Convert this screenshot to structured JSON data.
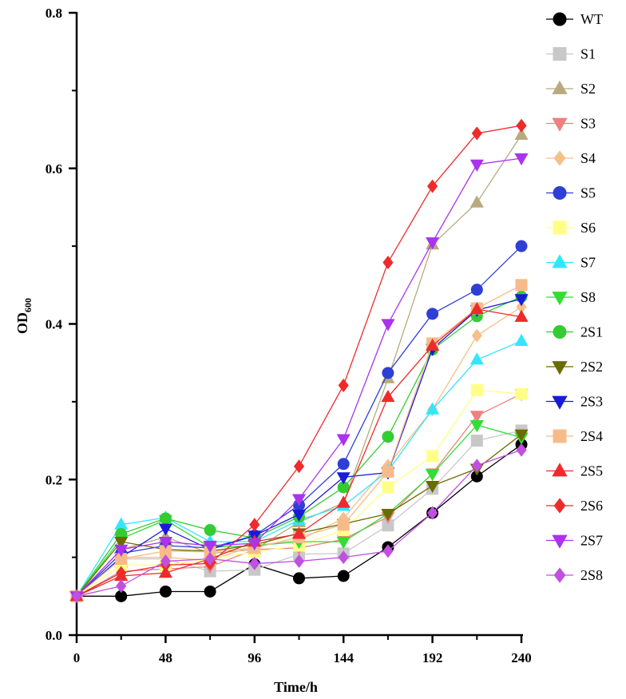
{
  "chart_data": {
    "type": "line",
    "xlabel": "Time/h",
    "ylabel": "OD",
    "ylabel_subscript": "600",
    "xlim": [
      0,
      240
    ],
    "ylim": [
      0.0,
      0.8
    ],
    "x_ticks": [
      0,
      48,
      96,
      144,
      192,
      240
    ],
    "x_tick_labels": [
      "0",
      "48",
      "96",
      "144",
      "192",
      "240"
    ],
    "y_ticks": [
      0.0,
      0.2,
      0.4,
      0.6,
      0.8
    ],
    "y_tick_labels": [
      "0.0",
      "0.2",
      "0.4",
      "0.6",
      "0.8"
    ],
    "grid": false,
    "legend_position": "right",
    "x": [
      0,
      24,
      48,
      72,
      96,
      120,
      144,
      168,
      192,
      216,
      240
    ],
    "series": [
      {
        "name": "WT",
        "marker": "circle",
        "color": "#000000",
        "values": [
          0.05,
          0.05,
          0.056,
          0.056,
          0.091,
          0.073,
          0.076,
          0.113,
          0.157,
          0.204,
          0.245
        ]
      },
      {
        "name": "S1",
        "marker": "square",
        "color": "#c8c8c8",
        "values": [
          0.05,
          0.098,
          0.098,
          0.082,
          0.084,
          0.104,
          0.105,
          0.141,
          0.188,
          0.25,
          0.263
        ]
      },
      {
        "name": "S2",
        "marker": "triangle-up",
        "color": "#b8aa7e",
        "values": [
          0.05,
          0.11,
          0.126,
          0.105,
          0.11,
          0.145,
          0.17,
          0.33,
          0.502,
          0.556,
          0.643
        ]
      },
      {
        "name": "S3",
        "marker": "triangle-down",
        "color": "#f08080",
        "values": [
          0.05,
          0.082,
          0.085,
          0.088,
          0.11,
          0.112,
          0.123,
          0.152,
          0.208,
          0.282,
          0.31
        ]
      },
      {
        "name": "S4",
        "marker": "diamond",
        "color": "#f5c08a",
        "values": [
          0.05,
          0.1,
          0.1,
          0.096,
          0.115,
          0.122,
          0.15,
          0.218,
          0.29,
          0.385,
          0.422
        ]
      },
      {
        "name": "S5",
        "marker": "circle",
        "color": "#2e3fd6",
        "values": [
          0.05,
          0.105,
          0.115,
          0.112,
          0.128,
          0.167,
          0.22,
          0.337,
          0.413,
          0.444,
          0.5
        ]
      },
      {
        "name": "S6",
        "marker": "square",
        "color": "#ffff88",
        "values": [
          0.05,
          0.09,
          0.09,
          0.098,
          0.107,
          0.115,
          0.135,
          0.19,
          0.23,
          0.315,
          0.31
        ]
      },
      {
        "name": "S7",
        "marker": "triangle-up",
        "color": "#33e6ff",
        "values": [
          0.05,
          0.142,
          0.151,
          0.12,
          0.12,
          0.148,
          0.166,
          0.211,
          0.29,
          0.354,
          0.378
        ]
      },
      {
        "name": "S8",
        "marker": "triangle-down",
        "color": "#33dd33",
        "values": [
          0.05,
          0.124,
          0.148,
          0.113,
          0.115,
          0.12,
          0.12,
          0.156,
          0.207,
          0.27,
          0.254
        ]
      },
      {
        "name": "2S1",
        "marker": "circle",
        "color": "#33cc33",
        "values": [
          0.05,
          0.13,
          0.15,
          0.135,
          0.125,
          0.152,
          0.19,
          0.255,
          0.367,
          0.41,
          0.435
        ]
      },
      {
        "name": "2S2",
        "marker": "triangle-down",
        "color": "#6b6b00",
        "values": [
          0.05,
          0.12,
          0.11,
          0.108,
          0.116,
          0.131,
          0.143,
          0.156,
          0.192,
          0.214,
          0.258
        ]
      },
      {
        "name": "2S3",
        "marker": "triangle-down",
        "color": "#1a1adc",
        "values": [
          0.05,
          0.1,
          0.137,
          0.11,
          0.128,
          0.155,
          0.203,
          0.209,
          0.368,
          0.418,
          0.432
        ]
      },
      {
        "name": "2S4",
        "marker": "square",
        "color": "#f7bb8a",
        "values": [
          0.05,
          0.098,
          0.108,
          0.107,
          0.112,
          0.126,
          0.142,
          0.21,
          0.375,
          0.42,
          0.45
        ]
      },
      {
        "name": "2S5",
        "marker": "triangle-up",
        "color": "#ee2b2b",
        "values": [
          0.05,
          0.076,
          0.08,
          0.098,
          0.12,
          0.13,
          0.17,
          0.306,
          0.372,
          0.419,
          0.409
        ]
      },
      {
        "name": "2S6",
        "marker": "diamond",
        "color": "#ee2b2b",
        "values": [
          0.05,
          0.08,
          0.09,
          0.092,
          0.142,
          0.217,
          0.321,
          0.479,
          0.577,
          0.645,
          0.655
        ]
      },
      {
        "name": "2S7",
        "marker": "triangle-down",
        "color": "#aa33ee",
        "values": [
          0.05,
          0.11,
          0.12,
          0.115,
          0.118,
          0.175,
          0.252,
          0.4,
          0.505,
          0.605,
          0.613
        ]
      },
      {
        "name": "2S8",
        "marker": "diamond",
        "color": "#c050e0",
        "values": [
          0.05,
          0.063,
          0.095,
          0.098,
          0.092,
          0.095,
          0.1,
          0.108,
          0.157,
          0.218,
          0.238
        ]
      }
    ]
  }
}
